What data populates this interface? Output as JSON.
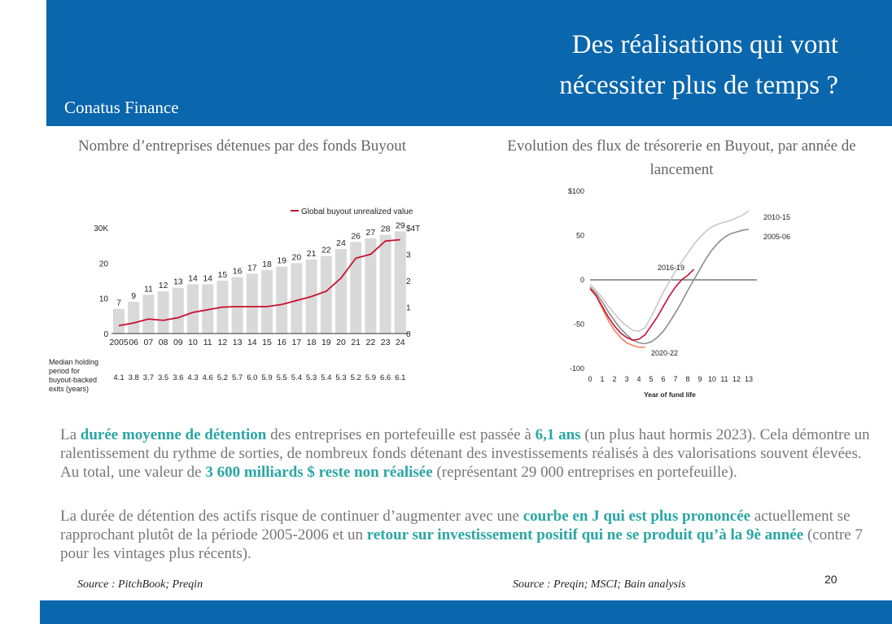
{
  "slide": {
    "title_line1": "Des réalisations qui vont",
    "title_line2": "nécessiter plus de temps ?",
    "brand": "Conatus Finance",
    "page_number": "20",
    "source_left": "Source : PitchBook; Preqin",
    "source_right": "Source : Preqin; MSCI; Bain analysis",
    "paragraph1": [
      {
        "text": "La ",
        "hl": false
      },
      {
        "text": "durée moyenne de détention",
        "hl": true
      },
      {
        "text": " des entreprises en portefeuille est passée à ",
        "hl": false
      },
      {
        "text": "6,1 ans",
        "hl": true
      },
      {
        "text": " (un plus haut hormis 2023). Cela démontre un ralentissement du rythme de sorties, de nombreux fonds détenant des investissements réalisés à des valorisations souvent élevées. Au total, une valeur de ",
        "hl": false
      },
      {
        "text": "3 600 milliards $ reste non réalisée",
        "hl": true
      },
      {
        "text": " (représentant 29 000 entreprises en portefeuille).",
        "hl": false
      }
    ],
    "paragraph2": [
      {
        "text": "La durée de détention des actifs risque de continuer d’augmenter avec une ",
        "hl": false
      },
      {
        "text": "courbe en J qui est plus prononcée",
        "hl": true
      },
      {
        "text": " actuellement se rapprochant plutôt de la période 2005-2006 et un ",
        "hl": false
      },
      {
        "text": "retour sur investissement positif qui ne se produit qu’à la 9è année",
        "hl": true
      },
      {
        "text": " (contre 7 pour les vintages plus récents).",
        "hl": false
      }
    ],
    "colors": {
      "header": "#0a66ad",
      "highlight": "#2aa6a4",
      "bar": "#d9d9d9",
      "line_red": "#c8102e"
    }
  },
  "chart_data": [
    {
      "type": "bar",
      "panel_title": "Nombre d’entreprises détenues par des fonds Buyout",
      "categories": [
        "2005",
        "06",
        "07",
        "08",
        "09",
        "10",
        "11",
        "12",
        "13",
        "14",
        "15",
        "16",
        "17",
        "18",
        "19",
        "20",
        "21",
        "22",
        "23",
        "24"
      ],
      "values": [
        7,
        9,
        11,
        12,
        13,
        14,
        14,
        15,
        16,
        17,
        18,
        19,
        20,
        21,
        22,
        24,
        26,
        27,
        28,
        29
      ],
      "y_ticks": [
        "0",
        "10",
        "20",
        "30K"
      ],
      "ylim": [
        0,
        30
      ],
      "secondary_series": {
        "name": "Global buyout unrealized value",
        "values": [
          0.3,
          0.4,
          0.55,
          0.5,
          0.6,
          0.8,
          0.9,
          1.0,
          1.02,
          1.02,
          1.02,
          1.1,
          1.25,
          1.4,
          1.6,
          2.1,
          2.85,
          3.0,
          3.5,
          3.55
        ],
        "y2_ticks": [
          "0",
          "1",
          "2",
          "3",
          "$4T"
        ],
        "y2lim": [
          0,
          4
        ]
      },
      "holding_label": [
        "Median holding",
        "period for",
        "buyout-backed",
        "exits (years)"
      ],
      "holding_values": [
        "4.1",
        "3.8",
        "3.7",
        "3.5",
        "3.6",
        "4.3",
        "4.6",
        "5.2",
        "5.7",
        "6.0",
        "5.9",
        "5.5",
        "5.4",
        "5.3",
        "5.4",
        "5.3",
        "5.2",
        "5.9",
        "6.6",
        "6.1"
      ]
    },
    {
      "type": "line",
      "panel_title": "Evolution des flux de trésorerie en Buyout, par année de lancement",
      "xlabel": "Year of fund life",
      "x_ticks": [
        "0",
        "1",
        "2",
        "3",
        "4",
        "5",
        "6",
        "7",
        "8",
        "9",
        "10",
        "11",
        "12",
        "13"
      ],
      "y_ticks": [
        "$100",
        "50",
        "0",
        "-50",
        "-100"
      ],
      "y_values": [
        100,
        50,
        0,
        -50,
        -100
      ],
      "xlim": [
        0,
        13
      ],
      "ylim": [
        -100,
        100
      ],
      "series": [
        {
          "name": "2010-15",
          "color": "#c8c8c8",
          "x": [
            0,
            0.5,
            1,
            1.5,
            2,
            2.5,
            3,
            3.5,
            4,
            4.5,
            5,
            5.5,
            6,
            6.5,
            7,
            7.5,
            8,
            8.5,
            9,
            9.5,
            10,
            10.5,
            11,
            11.5,
            12,
            12.5,
            13
          ],
          "y": [
            -5,
            -12,
            -20,
            -30,
            -38,
            -46,
            -52,
            -57,
            -58,
            -54,
            -42,
            -28,
            -14,
            -2,
            10,
            20,
            30,
            40,
            48,
            55,
            60,
            63,
            65,
            67,
            70,
            73,
            78
          ]
        },
        {
          "name": "2005-06",
          "color": "#8c8c8c",
          "x": [
            0,
            0.5,
            1,
            1.5,
            2,
            2.5,
            3,
            3.5,
            4,
            4.5,
            5,
            5.5,
            6,
            6.5,
            7,
            7.5,
            8,
            8.5,
            9,
            9.5,
            10,
            10.5,
            11,
            11.5,
            12,
            12.5,
            13
          ],
          "y": [
            -8,
            -15,
            -25,
            -36,
            -46,
            -55,
            -62,
            -68,
            -71,
            -72,
            -70,
            -65,
            -58,
            -48,
            -37,
            -25,
            -12,
            0,
            12,
            24,
            34,
            42,
            48,
            52,
            54,
            56,
            57
          ]
        },
        {
          "name": "2016-19",
          "color": "#c8102e",
          "x": [
            0,
            0.5,
            1,
            1.5,
            2,
            2.5,
            3,
            3.5,
            4,
            4.5,
            5,
            5.5,
            6,
            6.5,
            7,
            7.5,
            8,
            8.5
          ],
          "y": [
            -10,
            -18,
            -30,
            -42,
            -52,
            -60,
            -65,
            -68,
            -67,
            -62,
            -52,
            -42,
            -30,
            -18,
            -8,
            0,
            5,
            12
          ]
        },
        {
          "name": "2020-22",
          "color": "#f08060",
          "x": [
            0,
            0.5,
            1,
            1.5,
            2,
            2.5,
            3,
            3.5,
            4,
            4.5
          ],
          "y": [
            -8,
            -18,
            -32,
            -46,
            -57,
            -65,
            -71,
            -74,
            -76,
            -76
          ]
        }
      ]
    }
  ]
}
